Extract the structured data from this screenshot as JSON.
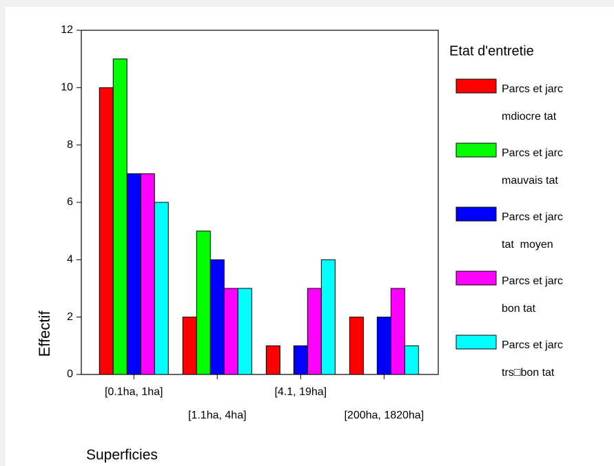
{
  "chart_data": {
    "type": "bar",
    "x_label": "Superficies",
    "y_label": "Effectif",
    "legend_title": "Etat d'entretie",
    "categories": [
      "[0.1ha, 1ha]",
      "[1.1ha, 4ha]",
      "[4.1, 19ha]",
      "[200ha, 1820ha]"
    ],
    "series": [
      {
        "name": "Parcs et jarc",
        "subname": "mdiocre tat",
        "color": "#ff0000",
        "values": [
          10,
          2,
          1,
          2
        ]
      },
      {
        "name": "Parcs et jarc",
        "subname": "mauvais tat",
        "color": "#00ff00",
        "values": [
          11,
          5,
          0,
          0
        ]
      },
      {
        "name": "Parcs et jarc",
        "subname": "tat  moyen",
        "color": "#0000ff",
        "values": [
          7,
          4,
          1,
          2
        ]
      },
      {
        "name": "Parcs et jarc",
        "subname": "bon tat",
        "color": "#ff00ff",
        "values": [
          7,
          3,
          3,
          3
        ]
      },
      {
        "name": "Parcs et jarc",
        "subname": "trs□bon tat",
        "color": "#00ffff",
        "values": [
          6,
          3,
          4,
          1
        ]
      }
    ],
    "ylim": [
      0,
      12
    ],
    "yticks": [
      0,
      2,
      4,
      6,
      8,
      10,
      12
    ]
  }
}
